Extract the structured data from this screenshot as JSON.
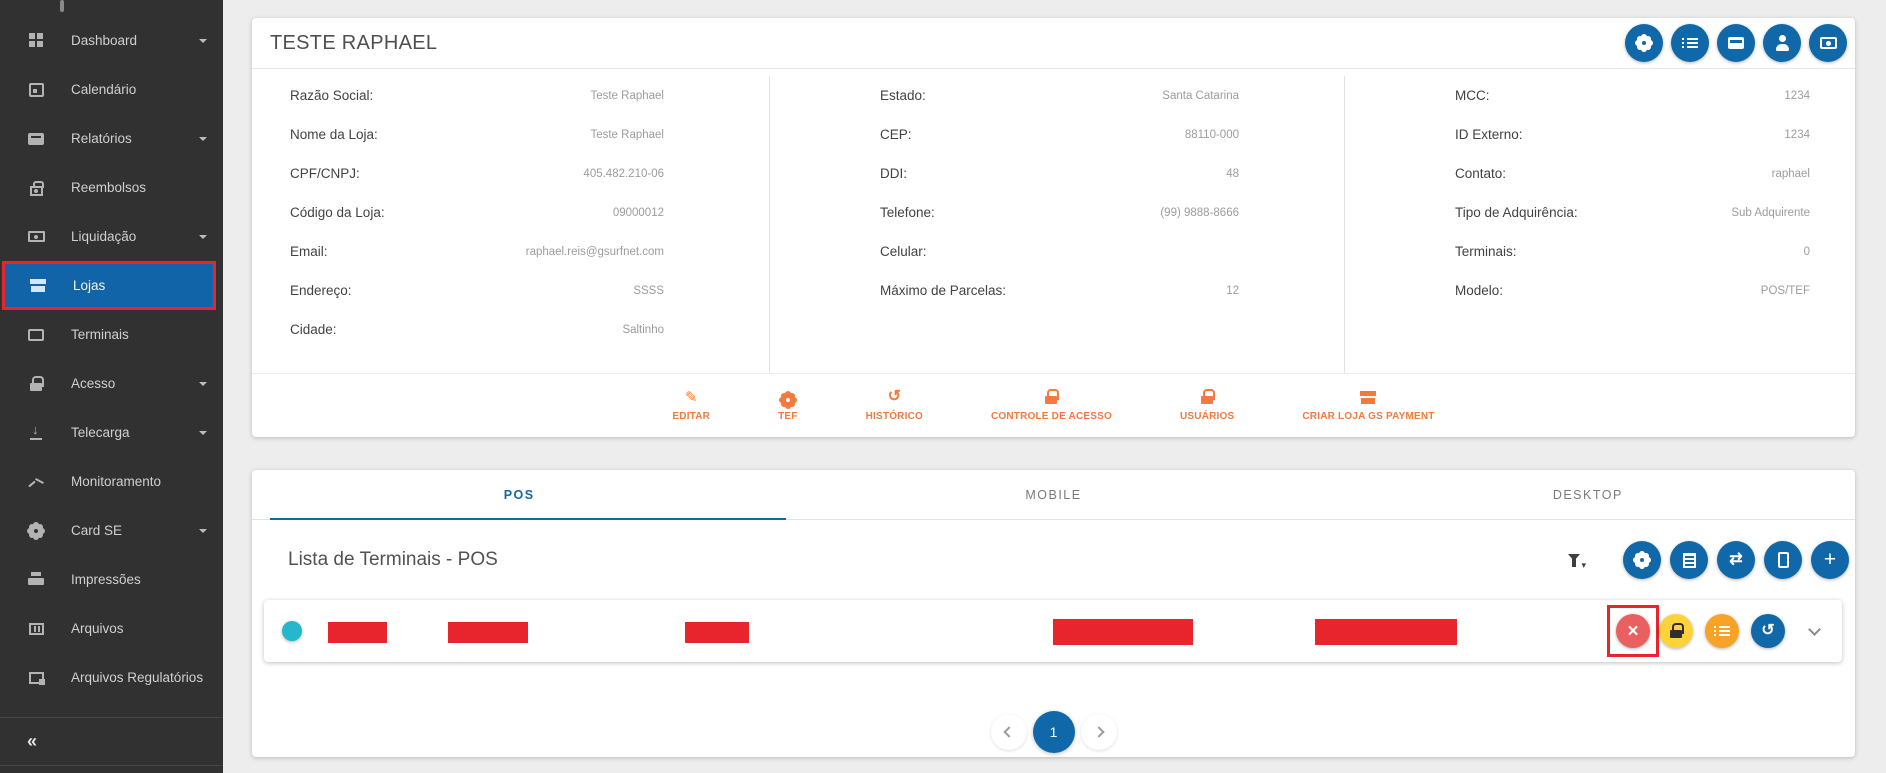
{
  "sidebar": {
    "items": [
      {
        "label": "Dashboard",
        "icon": "dashboard-icon",
        "expandable": true
      },
      {
        "label": "Calendário",
        "icon": "calendar-icon",
        "expandable": false
      },
      {
        "label": "Relatórios",
        "icon": "reports-icon",
        "expandable": true
      },
      {
        "label": "Reembolsos",
        "icon": "refunds-icon",
        "expandable": false
      },
      {
        "label": "Liquidação",
        "icon": "settlement-money-icon",
        "expandable": true
      },
      {
        "label": "Lojas",
        "icon": "store-icon",
        "expandable": false,
        "selected": true,
        "annotated": true
      },
      {
        "label": "Terminais",
        "icon": "terminal-icon",
        "expandable": false
      },
      {
        "label": "Acesso",
        "icon": "lock-icon",
        "expandable": true
      },
      {
        "label": "Telecarga",
        "icon": "download-icon",
        "expandable": true
      },
      {
        "label": "Monitoramento",
        "icon": "trending-up-icon",
        "expandable": false
      },
      {
        "label": "Card SE",
        "icon": "gear-icon",
        "expandable": true
      },
      {
        "label": "Impressões",
        "icon": "printer-icon",
        "expandable": false
      },
      {
        "label": "Arquivos",
        "icon": "files-icon",
        "expandable": false
      },
      {
        "label": "Arquivos Regulatórios",
        "icon": "regulatory-files-icon",
        "expandable": false
      }
    ],
    "collapse_label": "«"
  },
  "store_card": {
    "title": "TESTE RAPHAEL",
    "header_buttons": [
      {
        "name": "settings",
        "icon": "gear-icon"
      },
      {
        "name": "list",
        "icon": "list-icon"
      },
      {
        "name": "card-machine",
        "icon": "card-machine-icon"
      },
      {
        "name": "user",
        "icon": "person-icon"
      },
      {
        "name": "payments",
        "icon": "money-icon"
      }
    ],
    "columns": [
      {
        "fields": [
          {
            "label": "Razão Social:",
            "value": "Teste Raphael"
          },
          {
            "label": "Nome da Loja:",
            "value": "Teste Raphael"
          },
          {
            "label": "CPF/CNPJ:",
            "value": "405.482.210-06"
          },
          {
            "label": "Código da Loja:",
            "value": "09000012"
          },
          {
            "label": "Email:",
            "value": "raphael.reis@gsurfnet.com"
          },
          {
            "label": "Endereço:",
            "value": "SSSS"
          },
          {
            "label": "Cidade:",
            "value": "Saltinho"
          }
        ]
      },
      {
        "fields": [
          {
            "label": "Estado:",
            "value": "Santa Catarina"
          },
          {
            "label": "CEP:",
            "value": "88110-000"
          },
          {
            "label": "DDI:",
            "value": "48"
          },
          {
            "label": "Telefone:",
            "value": "(99) 9888-8666"
          },
          {
            "label": "Celular:",
            "value": ""
          },
          {
            "label": "Máximo de Parcelas:",
            "value": "12"
          }
        ]
      },
      {
        "fields": [
          {
            "label": "MCC:",
            "value": "1234"
          },
          {
            "label": "ID Externo:",
            "value": "1234"
          },
          {
            "label": "Contato:",
            "value": "raphael"
          },
          {
            "label": "Tipo de Adquirência:",
            "value": "Sub Adquirente"
          },
          {
            "label": "Terminais:",
            "value": "0"
          },
          {
            "label": "Modelo:",
            "value": "POS/TEF"
          }
        ]
      }
    ],
    "actions": [
      {
        "label": "EDITAR",
        "icon": "pencil-icon"
      },
      {
        "label": "TEF",
        "icon": "gear-icon"
      },
      {
        "label": "HISTÓRICO",
        "icon": "history-icon"
      },
      {
        "label": "CONTROLE DE ACESSO",
        "icon": "lock-icon"
      },
      {
        "label": "USUÁRIOS",
        "icon": "lock-icon"
      },
      {
        "label": "CRIAR LOJA GS PAYMENT",
        "icon": "store-icon"
      }
    ]
  },
  "terminals_card": {
    "tabs": [
      {
        "label": "POS",
        "active": true
      },
      {
        "label": "MOBILE",
        "active": false
      },
      {
        "label": "DESKTOP",
        "active": false
      }
    ],
    "list_title": "Lista de Terminais - POS",
    "toolbar_buttons": [
      {
        "name": "filter",
        "icon": "filter-icon"
      },
      {
        "name": "settings",
        "icon": "gear-icon"
      },
      {
        "name": "receipt",
        "icon": "receipt-icon"
      },
      {
        "name": "transfer",
        "icon": "swap-arrows-icon"
      },
      {
        "name": "mobile",
        "icon": "phone-icon"
      },
      {
        "name": "add",
        "icon": "plus-icon"
      }
    ],
    "row": {
      "status": "active",
      "redacted_cells": 5,
      "actions": [
        {
          "name": "delete",
          "icon": "x-icon",
          "annotated": true
        },
        {
          "name": "lock",
          "icon": "lock-icon"
        },
        {
          "name": "details",
          "icon": "list-icon"
        },
        {
          "name": "history",
          "icon": "history-icon"
        }
      ]
    },
    "pagination": {
      "current_page": "1"
    }
  },
  "colors": {
    "sidebar_bg": "#313131",
    "selected_blue": "#1164a7",
    "accent_blue": "#1168a9",
    "tab_blue": "#14689f",
    "action_orange": "#f4793d",
    "annotation_red": "#e8252c",
    "redaction_red": "#e8252c",
    "status_cyan": "#25b7cb",
    "button_yellow": "#fdd23a",
    "button_orange": "#f9a326",
    "button_red": "#ea5f5f",
    "page_bg": "#ededed"
  }
}
